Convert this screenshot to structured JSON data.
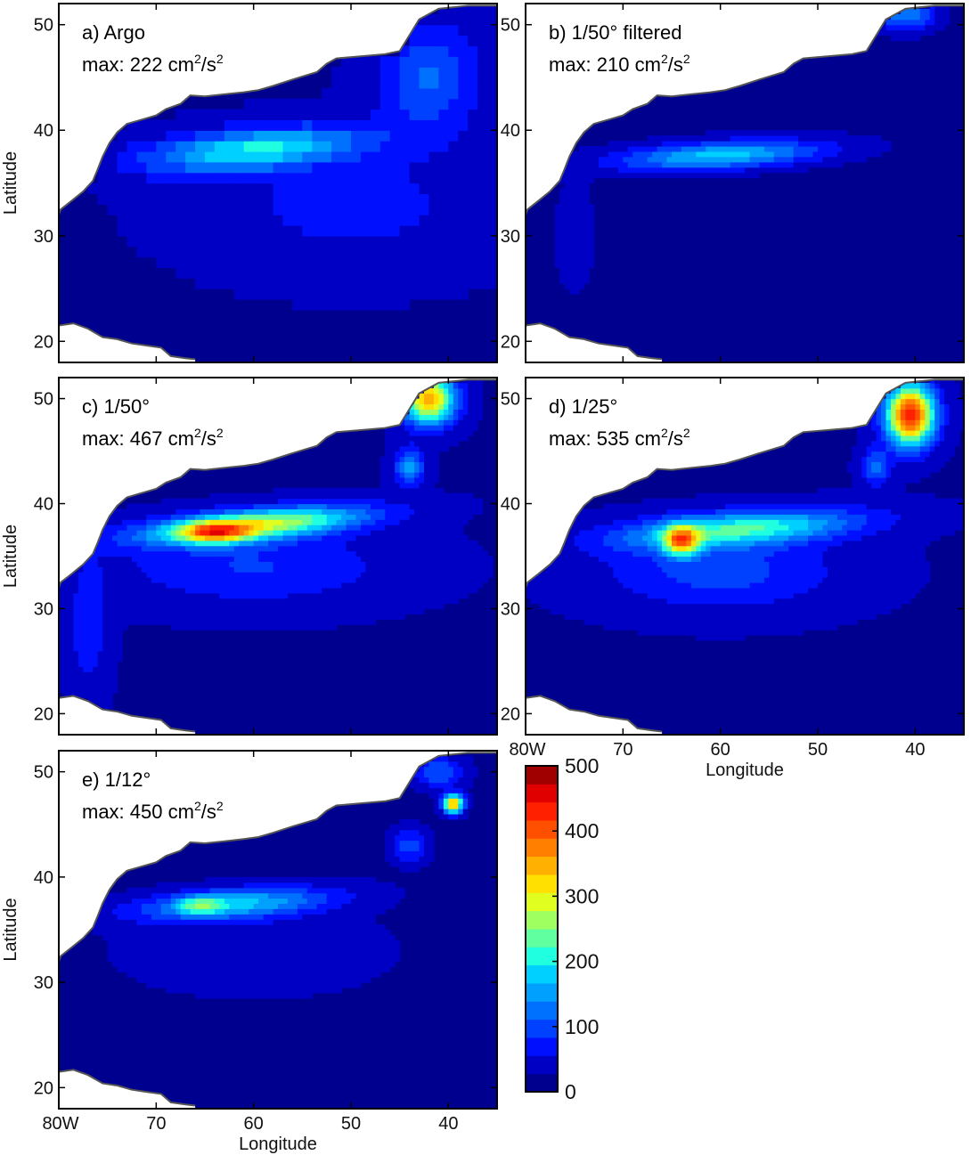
{
  "chart_data": {
    "type": "heatmap",
    "axes": {
      "x_range": [
        -80,
        -35
      ],
      "y_range": [
        18,
        52
      ],
      "x_ticks": [
        -80,
        -70,
        -60,
        -50,
        -40
      ],
      "x_tick_labels": [
        "80W",
        "70",
        "60",
        "50",
        "40"
      ],
      "y_ticks": [
        20,
        30,
        40,
        50
      ],
      "y_tick_labels": [
        "20",
        "30",
        "40",
        "50"
      ],
      "xlabel": "Longitude",
      "ylabel": "Latitude"
    },
    "panels": [
      {
        "label": "a) Argo",
        "max_prefix": "max: 222 cm",
        "max_mid": "/s",
        "sup1": "2",
        "sup2": "2",
        "max_value": 222,
        "style": "blocky"
      },
      {
        "label": "b) 1/50° filtered",
        "max_prefix": "max: 210 cm",
        "max_mid": "/s",
        "sup1": "2",
        "sup2": "2",
        "max_value": 210,
        "style": "smooth"
      },
      {
        "label": "c) 1/50°",
        "max_prefix": "max: 467 cm",
        "max_mid": "/s",
        "sup1": "2",
        "sup2": "2",
        "max_value": 467,
        "style": "smooth"
      },
      {
        "label": "d) 1/25°",
        "max_prefix": "max: 535 cm",
        "max_mid": "/s",
        "sup1": "2",
        "sup2": "2",
        "max_value": 535,
        "style": "smooth"
      },
      {
        "label": "e) 1/12°",
        "max_prefix": "max: 450 cm",
        "max_mid": "/s",
        "sup1": "2",
        "sup2": "2",
        "max_value": 450,
        "style": "smooth"
      }
    ],
    "colorbar": {
      "min": 0,
      "max": 500,
      "ticks": [
        0,
        100,
        200,
        300,
        400,
        500
      ],
      "tick_labels": [
        "0",
        "100",
        "200",
        "300",
        "400",
        "500"
      ],
      "colors": [
        "#00008f",
        "#0000c4",
        "#0010ff",
        "#0040ff",
        "#0070ff",
        "#00a0ff",
        "#00d0ff",
        "#20ffe0",
        "#60ffa0",
        "#a0ff60",
        "#e0ff20",
        "#ffe000",
        "#ffb000",
        "#ff8000",
        "#ff5000",
        "#ff2000",
        "#e00000",
        "#a00000"
      ]
    },
    "land_color": "#ffffff",
    "coast_color": "#555555"
  }
}
